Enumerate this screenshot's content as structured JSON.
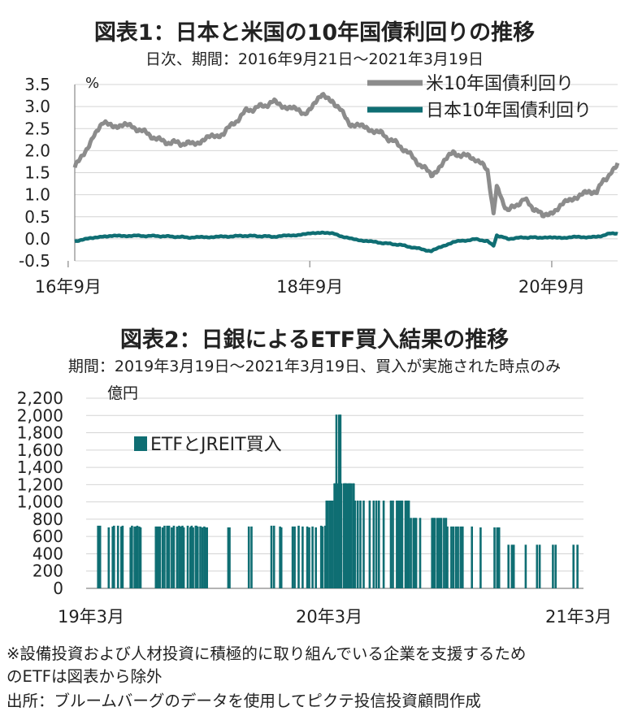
{
  "chart1": {
    "title": "図表1：日本と米国の10年国債利回りの推移",
    "subtitle": "日次、期間：2016年9月21日～2021年3月19日",
    "unit": "%",
    "yticks": [
      "3.5",
      "3.0",
      "2.5",
      "2.0",
      "1.5",
      "1.0",
      "0.5",
      "0.0",
      "-0.5"
    ],
    "xticks": [
      "16年9月",
      "18年9月",
      "20年9月"
    ]
  },
  "chart2": {
    "title": "図表2：日銀によるETF買入結果の推移",
    "subtitle": "期間：2019年3月19日～2021年3月19日、買入が実施された時点のみ",
    "unit": "億円",
    "yticks": [
      "2,200",
      "2,000",
      "1,800",
      "1,600",
      "1,400",
      "1,200",
      "1,000",
      "800",
      "600",
      "400",
      "200",
      "0"
    ],
    "xticks": [
      "19年3月",
      "20年3月",
      "21年3月"
    ]
  },
  "notes": {
    "line1": "※設備投資および人材投資に積極的に取り組んでいる企業を支援するため",
    "line2": "のETFは図表から除外",
    "source": "出所：ブルームバーグのデータを使用してピクテ投信投資顧問作成"
  },
  "chart_data": [
    {
      "type": "line",
      "title": "図表1：日本と米国の10年国債利回りの推移",
      "ylabel": "%",
      "ylim": [
        -0.5,
        3.5
      ],
      "x": [
        "2016-09-21",
        "2016-11-15",
        "2016-12-15",
        "2017-03-15",
        "2017-06-15",
        "2017-09-08",
        "2017-12-15",
        "2018-02-21",
        "2018-05-17",
        "2018-08-15",
        "2018-10-08",
        "2018-11-08",
        "2019-01-03",
        "2019-03-22",
        "2019-06-03",
        "2019-09-03",
        "2019-11-08",
        "2020-01-15",
        "2020-02-20",
        "2020-03-09",
        "2020-03-19",
        "2020-04-21",
        "2020-06-08",
        "2020-08-04",
        "2020-09-15",
        "2020-11-09",
        "2021-01-15",
        "2021-02-25",
        "2021-03-19"
      ],
      "series": [
        {
          "name": "米10年国債利回り",
          "color": "#8c8c8c",
          "values": [
            1.6,
            2.3,
            2.6,
            2.55,
            2.2,
            2.15,
            2.4,
            2.9,
            3.1,
            2.85,
            3.23,
            3.15,
            2.6,
            2.45,
            2.1,
            1.45,
            1.95,
            1.82,
            1.55,
            0.55,
            1.15,
            0.62,
            0.9,
            0.52,
            0.68,
            0.95,
            1.1,
            1.5,
            1.72
          ]
        },
        {
          "name": "日本10年国債利回り",
          "color": "#0f6e73",
          "values": [
            -0.05,
            0.02,
            0.06,
            0.07,
            0.06,
            0.03,
            0.05,
            0.07,
            0.05,
            0.1,
            0.15,
            0.12,
            0.0,
            -0.08,
            -0.14,
            -0.28,
            -0.07,
            -0.01,
            -0.05,
            -0.15,
            0.08,
            0.0,
            0.03,
            0.03,
            0.02,
            0.04,
            0.04,
            0.12,
            0.11
          ]
        }
      ]
    },
    {
      "type": "bar",
      "title": "図表2：日銀によるETF買入結果の推移",
      "ylabel": "億円",
      "ylim": [
        0,
        2200
      ],
      "series": [
        {
          "name": "ETFとJREIT買入",
          "color": "#0f6e73",
          "x": [
            "2019-03-19",
            "2019-03-22",
            "2019-04-04",
            "2019-04-10",
            "2019-04-12",
            "2019-04-18",
            "2019-04-23",
            "2019-04-25",
            "2019-05-07",
            "2019-05-09",
            "2019-05-13",
            "2019-05-15",
            "2019-05-17",
            "2019-05-20",
            "2019-05-22",
            "2019-06-14",
            "2019-06-17",
            "2019-06-20",
            "2019-06-24",
            "2019-06-27",
            "2019-07-01",
            "2019-07-04",
            "2019-07-08",
            "2019-07-11",
            "2019-07-16",
            "2019-07-19",
            "2019-07-22",
            "2019-07-24",
            "2019-07-26",
            "2019-08-01",
            "2019-08-05",
            "2019-08-06",
            "2019-08-07",
            "2019-08-09",
            "2019-08-13",
            "2019-08-14",
            "2019-08-16",
            "2019-08-20",
            "2019-08-23",
            "2019-08-26",
            "2019-08-28",
            "2019-08-30",
            "2019-10-01",
            "2019-10-03",
            "2019-11-01",
            "2019-11-05",
            "2019-12-05",
            "2019-12-09",
            "2019-12-18",
            "2019-12-20",
            "2020-01-06",
            "2020-01-09",
            "2020-01-15",
            "2020-01-21",
            "2020-01-28",
            "2020-01-31",
            "2020-02-05",
            "2020-02-10",
            "2020-02-18",
            "2020-02-20",
            "2020-02-24",
            "2020-02-25",
            "2020-02-26",
            "2020-02-28",
            "2020-03-02",
            "2020-03-03",
            "2020-03-04",
            "2020-03-06",
            "2020-03-09",
            "2020-03-10",
            "2020-03-11",
            "2020-03-12",
            "2020-03-13",
            "2020-03-16",
            "2020-03-17",
            "2020-03-18",
            "2020-03-19",
            "2020-03-23",
            "2020-03-24",
            "2020-03-25",
            "2020-03-26",
            "2020-03-27",
            "2020-03-30",
            "2020-03-31",
            "2020-04-02",
            "2020-04-03",
            "2020-04-06",
            "2020-04-07",
            "2020-04-09",
            "2020-04-13",
            "2020-04-17",
            "2020-04-22",
            "2020-05-01",
            "2020-05-07",
            "2020-05-11",
            "2020-05-15",
            "2020-05-22",
            "2020-06-02",
            "2020-06-05",
            "2020-06-11",
            "2020-06-12",
            "2020-06-15",
            "2020-06-17",
            "2020-06-19",
            "2020-06-24",
            "2020-06-26",
            "2020-06-29",
            "2020-07-02",
            "2020-07-06",
            "2020-07-08",
            "2020-07-10",
            "2020-07-16",
            "2020-08-03",
            "2020-08-05",
            "2020-08-07",
            "2020-08-11",
            "2020-08-14",
            "2020-08-17",
            "2020-08-21",
            "2020-08-24",
            "2020-08-26",
            "2020-09-01",
            "2020-09-04",
            "2020-09-08",
            "2020-09-11",
            "2020-09-15",
            "2020-09-18",
            "2020-10-02",
            "2020-10-15",
            "2020-11-05",
            "2020-11-09",
            "2020-11-12",
            "2020-11-26",
            "2020-12-01",
            "2020-12-04",
            "2020-12-22",
            "2021-01-08",
            "2021-01-12",
            "2021-02-01",
            "2021-02-05",
            "2021-03-04",
            "2021-03-10"
          ],
          "values": [
            725,
            725,
            705,
            715,
            725,
            725,
            715,
            725,
            705,
            725,
            715,
            715,
            725,
            715,
            705,
            715,
            715,
            715,
            705,
            725,
            725,
            725,
            705,
            725,
            715,
            725,
            715,
            725,
            705,
            725,
            705,
            715,
            725,
            705,
            725,
            725,
            715,
            715,
            705,
            715,
            705,
            705,
            705,
            705,
            715,
            715,
            725,
            725,
            715,
            705,
            715,
            715,
            725,
            715,
            715,
            705,
            715,
            705,
            725,
            715,
            725,
            715,
            1015,
            1015,
            1015,
            715,
            1015,
            1015,
            1215,
            1215,
            1015,
            2010,
            1215,
            2010,
            1215,
            2010,
            1215,
            1215,
            1215,
            1215,
            1215,
            1215,
            1215,
            1215,
            1215,
            1215,
            1215,
            1215,
            1015,
            1015,
            1015,
            1015,
            1015,
            1015,
            1015,
            1015,
            1015,
            1015,
            1015,
            1015,
            1015,
            1015,
            1015,
            1015,
            1015,
            1015,
            1015,
            815,
            815,
            815,
            815,
            815,
            815,
            815,
            815,
            815,
            815,
            815,
            815,
            815,
            715,
            715,
            715,
            715,
            715,
            715,
            715,
            715,
            705,
            705,
            705,
            705,
            505,
            505,
            505,
            505,
            505,
            505,
            505,
            505,
            505,
            505
          ]
        }
      ]
    }
  ]
}
